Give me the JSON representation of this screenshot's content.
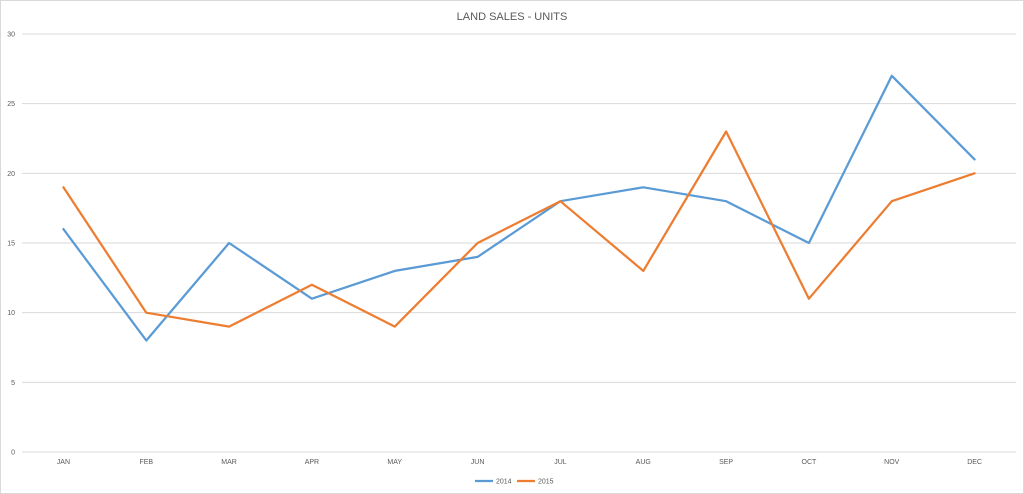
{
  "chart_data": {
    "type": "line",
    "title": "LAND SALES - UNITS",
    "xlabel": "",
    "ylabel": "",
    "categories": [
      "JAN",
      "FEB",
      "MAR",
      "APR",
      "MAY",
      "JUN",
      "JUL",
      "AUG",
      "SEP",
      "OCT",
      "NOV",
      "DEC"
    ],
    "ylim": [
      0,
      30
    ],
    "yticks": [
      0,
      5,
      10,
      15,
      20,
      25,
      30
    ],
    "grid": true,
    "legend_position": "bottom",
    "series": [
      {
        "name": "2014",
        "color": "#5B9BD5",
        "values": [
          16,
          8,
          15,
          11,
          13,
          14,
          18,
          19,
          18,
          15,
          27,
          21
        ]
      },
      {
        "name": "2015",
        "color": "#ED7D31",
        "values": [
          19,
          10,
          9,
          12,
          9,
          15,
          18,
          13,
          23,
          11,
          18,
          20
        ]
      }
    ]
  }
}
